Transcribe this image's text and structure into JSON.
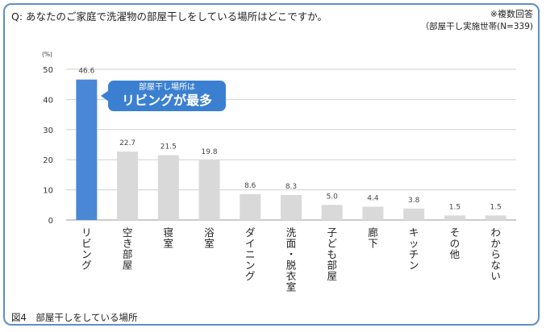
{
  "header": {
    "question": "Q: あなたのご家庭で洗濯物の部屋干しをしている場所はどこですか。",
    "note_multiple": "※複数回答",
    "note_base": "（部屋干し実施世帯(N=339)"
  },
  "callout": {
    "line1": "部屋干し場所は",
    "line2": "リビングが最多"
  },
  "figure_caption": "図4　部屋干しをしている場所",
  "colors": {
    "highlight_bar": "#4a88d6",
    "bar": "#d9d9d9",
    "grid": "#d0d0d0",
    "frame": "#5b8fc9"
  },
  "chart_data": {
    "type": "bar",
    "unit_label": "(%)",
    "ylim": [
      0,
      50
    ],
    "yticks": [
      0,
      10,
      20,
      30,
      40,
      50
    ],
    "grid": true,
    "categories": [
      "リビング",
      "空き部屋",
      "寝室",
      "浴室",
      "ダイニング",
      "洗面・脱衣室",
      "子ども部屋",
      "廊下",
      "キッチン",
      "その他",
      "わからない"
    ],
    "values": [
      46.6,
      22.7,
      21.5,
      19.8,
      8.6,
      8.3,
      5.0,
      4.4,
      3.8,
      1.5,
      1.5
    ],
    "value_labels": [
      "46.6",
      "22.7",
      "21.5",
      "19.8",
      "8.6",
      "8.3",
      "5.0",
      "4.4",
      "3.8",
      "1.5",
      "1.5"
    ],
    "highlight_index": 0
  }
}
